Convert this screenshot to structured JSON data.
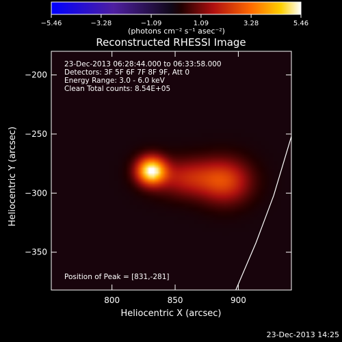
{
  "chart_data": {
    "type": "heatmap",
    "title": "Reconstructed RHESSI Image",
    "xlabel": "Heliocentric X (arcsec)",
    "ylabel": "Heliocentric Y (arcsec)",
    "xlim": [
      752,
      942
    ],
    "ylim": [
      -382,
      -180
    ],
    "x_ticks": [
      {
        "value": 800,
        "label": "800"
      },
      {
        "value": 850,
        "label": "850"
      },
      {
        "value": 900,
        "label": "900"
      }
    ],
    "y_ticks": [
      {
        "value": -200,
        "label": "−200"
      },
      {
        "value": -250,
        "label": "−250"
      },
      {
        "value": -300,
        "label": "−300"
      },
      {
        "value": -350,
        "label": "−350"
      }
    ],
    "colorbar": {
      "range": [
        -5.46,
        5.46
      ],
      "colormap": "blue-purple-black-red-yellow-white",
      "ticks": [
        {
          "value": -5.46,
          "label": "−5.46"
        },
        {
          "value": -3.28,
          "label": "−3.28"
        },
        {
          "value": -1.09,
          "label": "−1.09"
        },
        {
          "value": 1.09,
          "label": "1.09"
        },
        {
          "value": 3.28,
          "label": "3.28"
        },
        {
          "value": 5.46,
          "label": "5.46"
        }
      ],
      "unit_label": "(photons cm⁻² s⁻¹ asec⁻²)"
    },
    "info_lines": [
      "23-Dec-2013 06:28:44.000 to 06:33:58.000",
      "Detectors: 3F 5F 6F 7F 8F 9F, Att 0",
      "Energy Range: 3.0 - 6.0 keV",
      "Clean    Total counts: 8.54E+05"
    ],
    "peak_label": "Position of Peak = [831,-281]",
    "peak": {
      "x": 831,
      "y": -281,
      "value": 5.46
    },
    "sources": [
      {
        "x": 831,
        "y": -281,
        "sigma_x": 8,
        "sigma_y": 8,
        "amplitude": 5.46
      },
      {
        "x": 860,
        "y": -287,
        "sigma_x": 18,
        "sigma_y": 11,
        "amplitude": 1.9
      },
      {
        "x": 890,
        "y": -290,
        "sigma_x": 14,
        "sigma_y": 13,
        "amplitude": 2.3
      }
    ],
    "limb_curve": [
      [
        942,
        -252
      ],
      [
        928,
        -302
      ],
      [
        914,
        -342
      ],
      [
        898,
        -382
      ]
    ],
    "timestamp": "23-Dec-2013 14:25"
  }
}
